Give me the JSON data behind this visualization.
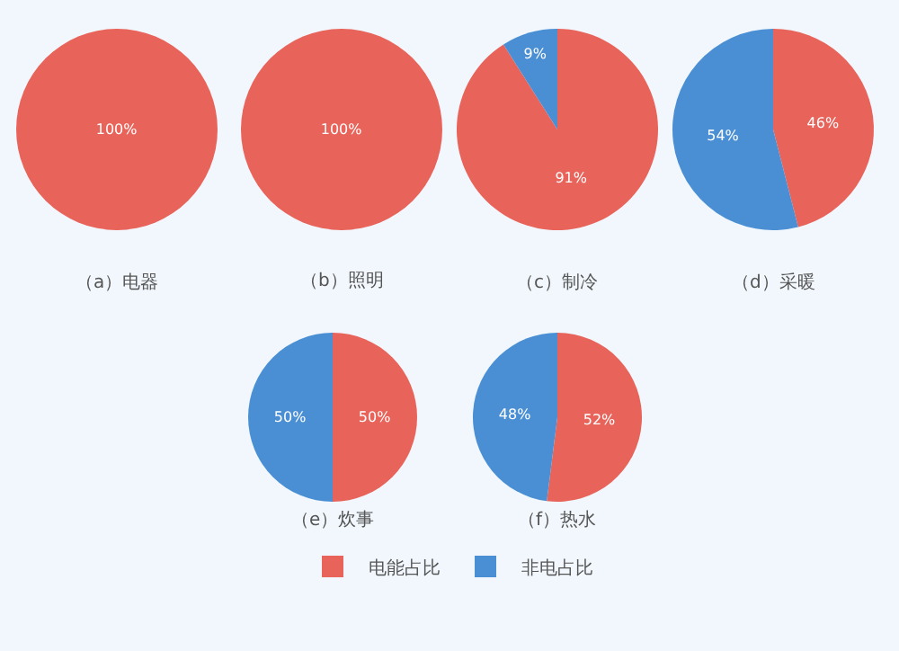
{
  "chart_data": [
    {
      "type": "pie",
      "title": "（a）电器",
      "categories": [
        "电能占比",
        "非电占比"
      ],
      "values": [
        100,
        0
      ],
      "colors": [
        "#e8635a",
        "#4a8fd4"
      ],
      "value_labels": [
        "100%",
        null
      ],
      "legend": "bottom"
    },
    {
      "type": "pie",
      "title": "（b）照明",
      "categories": [
        null,
        null
      ],
      "values": [
        100,
        0
      ],
      "colors": [
        "#e8635a",
        "#4a8fd4"
      ],
      "value_labels": [
        "100%",
        null
      ]
    },
    {
      "type": "pie",
      "title": "（c）制冷",
      "categories": [
        null,
        null
      ],
      "values": [
        91,
        9
      ],
      "colors": [
        "#e8635a",
        "#4a8fd4"
      ],
      "value_labels": [
        "91%",
        "9%"
      ]
    },
    {
      "type": "pie",
      "title": "（d）采暖",
      "categories": [
        null,
        null
      ],
      "values": [
        46,
        54
      ],
      "colors": [
        "#e8635a",
        "#4a8fd4"
      ],
      "value_labels": [
        "46%",
        "54%"
      ]
    },
    {
      "type": "pie",
      "title": "（e）炊事",
      "categories": [
        null,
        null
      ],
      "values": [
        50,
        50
      ],
      "colors": [
        "#e8635a",
        "#4a8fd4"
      ],
      "value_labels": [
        "50%",
        "50%"
      ]
    },
    {
      "type": "pie",
      "title": "（f）热水",
      "categories": [
        null,
        null
      ],
      "values": [
        52,
        48
      ],
      "colors": [
        "#e8635a",
        "#4a8fd4"
      ],
      "value_labels": [
        "52%",
        "48%"
      ]
    }
  ]
}
